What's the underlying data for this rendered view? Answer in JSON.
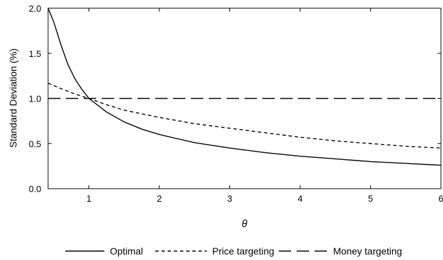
{
  "chart_data": {
    "type": "line",
    "title": "",
    "xlabel": "θ",
    "ylabel": "Standard Deviation (%)",
    "xlim": [
      0.42,
      6.0
    ],
    "ylim": [
      0.0,
      2.0
    ],
    "xticks": [
      1,
      2,
      3,
      4,
      5,
      6
    ],
    "yticks": [
      "0.0",
      "0.5",
      "1.0",
      "1.5",
      "2.0"
    ],
    "grid": false,
    "legend_position": "bottom",
    "series": [
      {
        "name": "Optimal",
        "style": "solid",
        "x": [
          0.42,
          0.5,
          0.6,
          0.7,
          0.8,
          0.9,
          1.0,
          1.25,
          1.5,
          1.75,
          2.0,
          2.5,
          3.0,
          3.5,
          4.0,
          4.5,
          5.0,
          5.5,
          6.0
        ],
        "y": [
          2.0,
          1.85,
          1.6,
          1.38,
          1.22,
          1.1,
          1.0,
          0.85,
          0.74,
          0.66,
          0.6,
          0.51,
          0.45,
          0.4,
          0.36,
          0.33,
          0.3,
          0.28,
          0.26
        ]
      },
      {
        "name": "Price targeting",
        "style": "short-dash",
        "x": [
          0.42,
          0.6,
          0.8,
          1.0,
          1.25,
          1.5,
          2.0,
          2.5,
          3.0,
          3.5,
          4.0,
          4.5,
          5.0,
          5.5,
          6.0
        ],
        "y": [
          1.17,
          1.11,
          1.05,
          1.0,
          0.93,
          0.87,
          0.79,
          0.72,
          0.67,
          0.62,
          0.57,
          0.53,
          0.5,
          0.47,
          0.45
        ]
      },
      {
        "name": "Money targeting",
        "style": "long-dash",
        "x": [
          0.42,
          6.0
        ],
        "y": [
          1.0,
          1.0
        ]
      }
    ]
  }
}
